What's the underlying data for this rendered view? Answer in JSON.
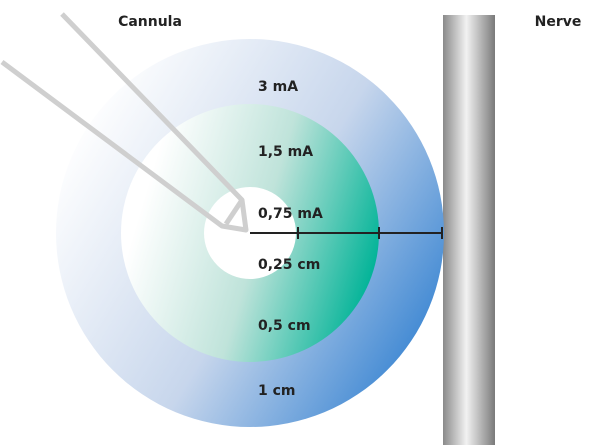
{
  "cannula": "Cannula",
  "nerve": "Nerve",
  "currents": [
    "3 mA",
    "1,5 mA",
    "0,75 mA"
  ],
  "distances": [
    "0,25 cm",
    "0,5 cm",
    "1 cm"
  ]
}
